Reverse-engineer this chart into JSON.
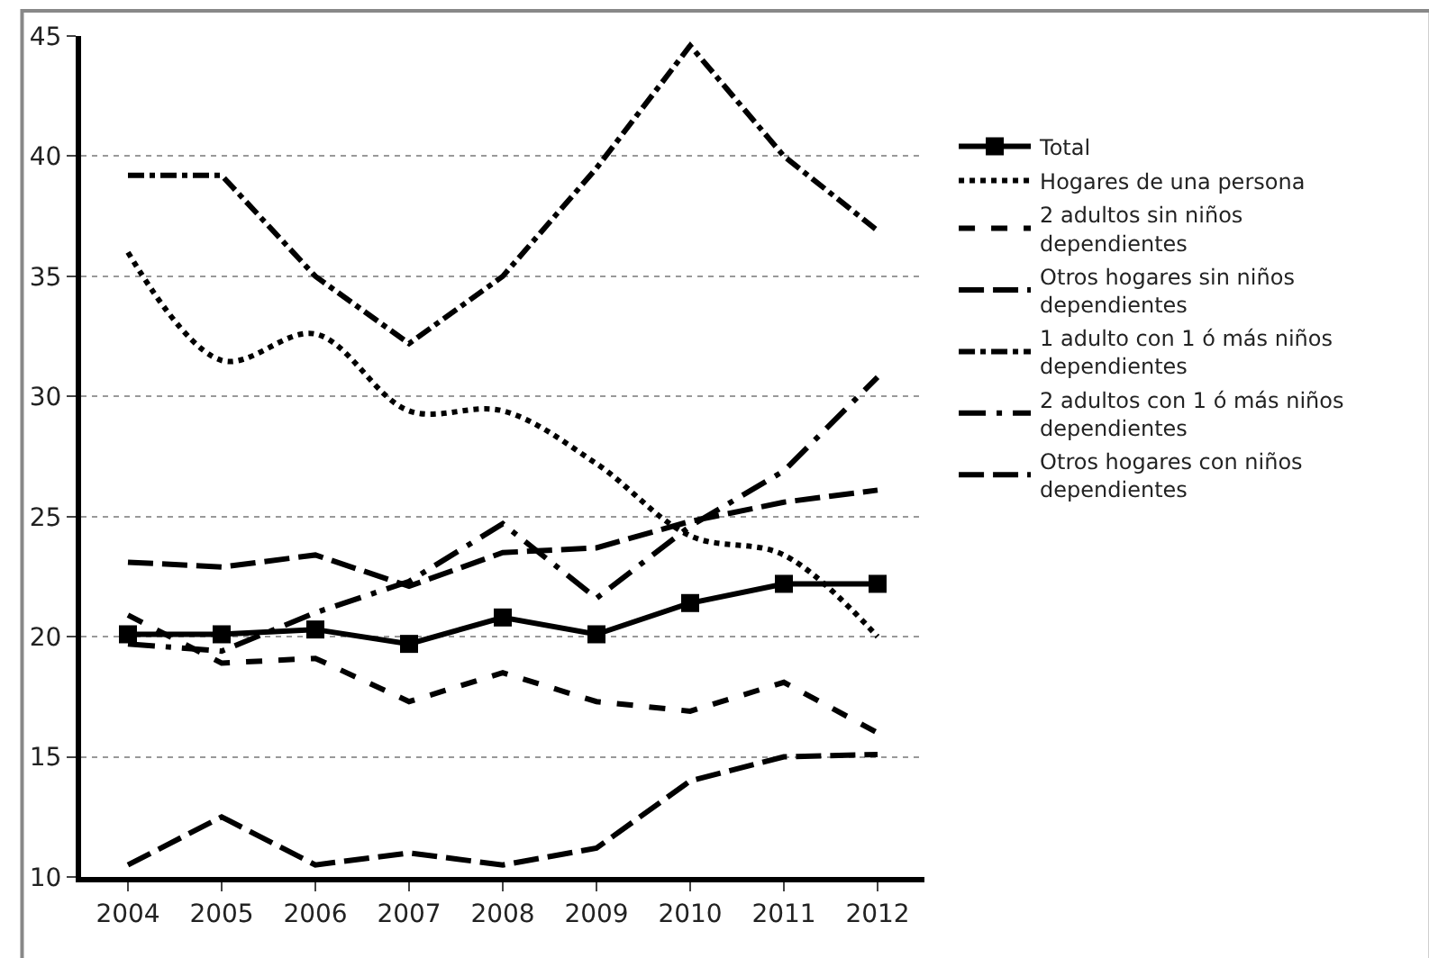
{
  "chart_data": {
    "type": "line",
    "categories": [
      "2004",
      "2005",
      "2006",
      "2007",
      "2008",
      "2009",
      "2010",
      "2011",
      "2012"
    ],
    "ylim": [
      10,
      45
    ],
    "yticks": [
      10,
      15,
      20,
      25,
      30,
      35,
      40,
      45
    ],
    "grid": "y",
    "legend": "right",
    "series": [
      {
        "name": "Total",
        "color": "#000000",
        "marker": "square",
        "line_style": "solid",
        "values": [
          20.1,
          20.1,
          20.3,
          19.7,
          20.8,
          20.1,
          21.4,
          22.2,
          22.2
        ]
      },
      {
        "name": "Hogares de una persona",
        "color": "#000000",
        "marker": "none",
        "line_style": "dotted",
        "values": [
          36.0,
          31.5,
          32.6,
          29.4,
          29.4,
          27.2,
          24.2,
          23.4,
          20.0
        ]
      },
      {
        "name": "2 adultos sin niños dependientes",
        "color": "#000000",
        "marker": "none",
        "line_style": "dashed",
        "values": [
          20.9,
          18.9,
          19.1,
          17.3,
          18.5,
          17.3,
          16.9,
          18.1,
          16.0
        ]
      },
      {
        "name": "Otros hogares sin niños dependientes",
        "color": "#000000",
        "marker": "none",
        "line_style": "longdash",
        "values": [
          23.1,
          22.9,
          23.4,
          22.1,
          23.5,
          23.7,
          24.8,
          25.6,
          26.1
        ]
      },
      {
        "name": "1 adulto con 1 ó más niños dependientes",
        "color": "#000000",
        "marker": "none",
        "line_style": "dashdot",
        "values": [
          39.2,
          39.2,
          35.0,
          32.2,
          35.0,
          39.5,
          44.6,
          40.0,
          36.9
        ]
      },
      {
        "name": "2 adultos con 1 ó más niños dependientes",
        "color": "#000000",
        "marker": "none",
        "line_style": "longdashdot",
        "values": [
          19.7,
          19.4,
          21.0,
          22.3,
          24.7,
          21.6,
          24.6,
          26.9,
          30.8
        ]
      },
      {
        "name": "Otros hogares con niños dependientes",
        "color": "#000000",
        "marker": "none",
        "line_style": "longdash",
        "values": [
          10.5,
          12.5,
          10.5,
          11.0,
          10.5,
          11.2,
          14.0,
          15.0,
          15.1
        ]
      }
    ]
  }
}
